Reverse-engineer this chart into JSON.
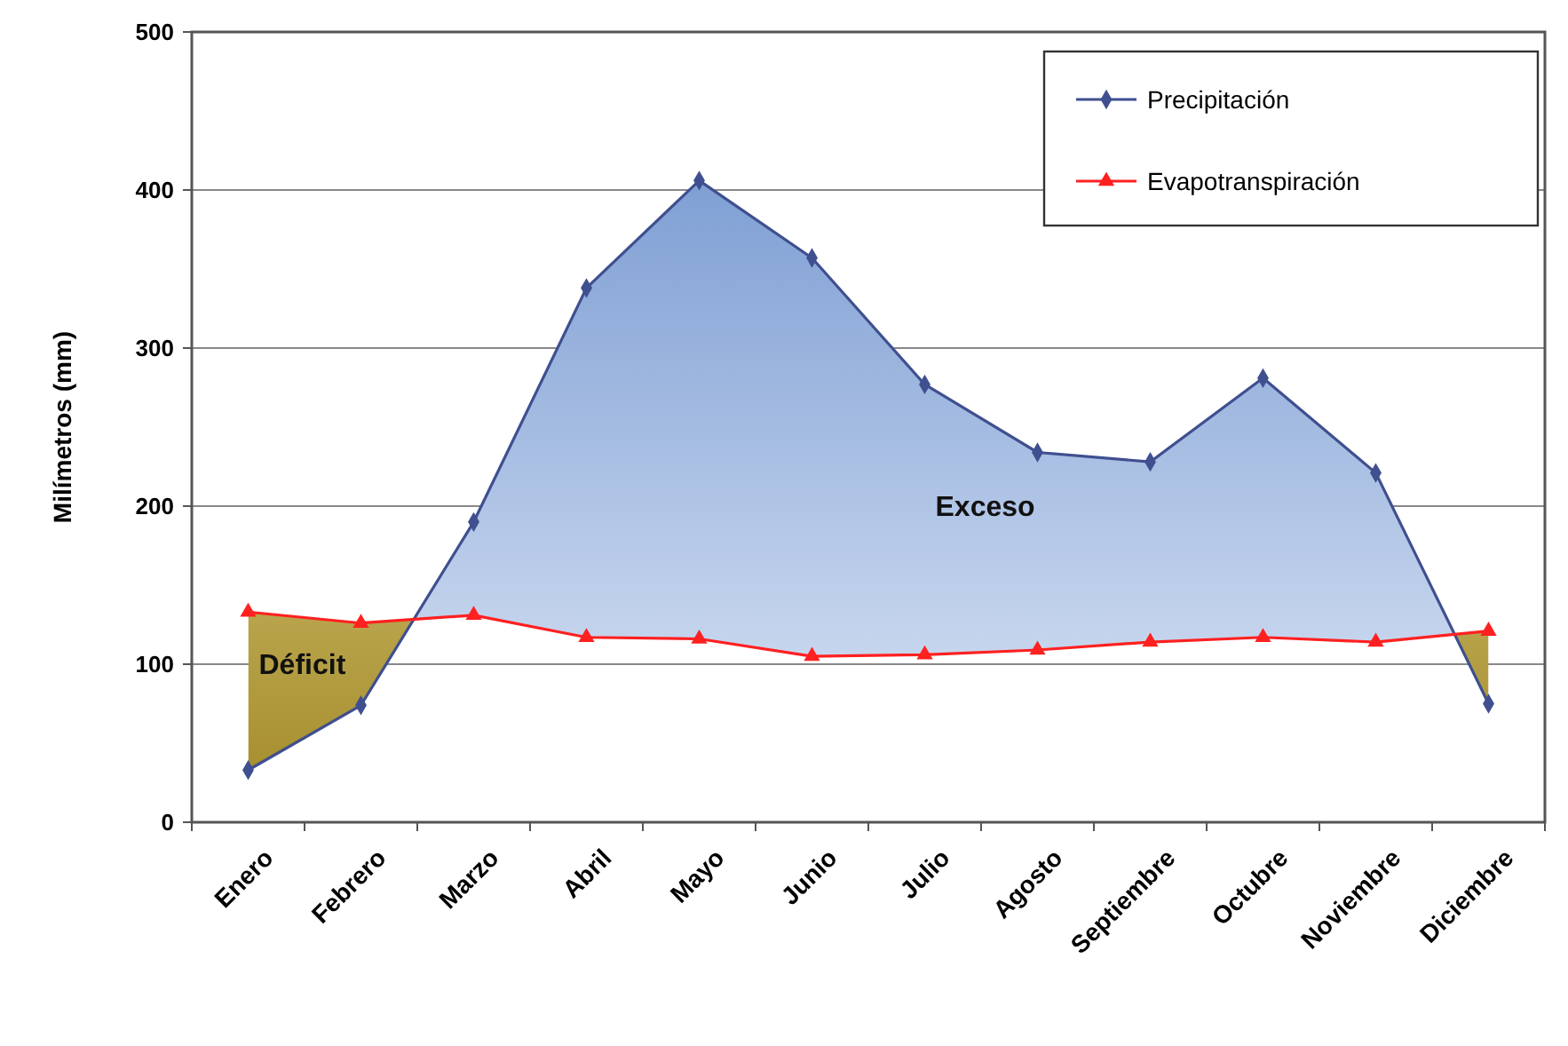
{
  "chart_data": {
    "type": "line",
    "ylabel": "Milímetros (mm)",
    "categories": [
      "Enero",
      "Febrero",
      "Marzo",
      "Abril",
      "Mayo",
      "Junio",
      "Julio",
      "Agosto",
      "Septiembre",
      "Octubre",
      "Noviembre",
      "Diciembre"
    ],
    "series": [
      {
        "name": "Precipitación",
        "color": "#3f4f8f",
        "marker": "diamond",
        "values": [
          33,
          74,
          190,
          338,
          406,
          357,
          277,
          234,
          228,
          281,
          221,
          75
        ],
        "lower": [
          133,
          126,
          131,
          117,
          116,
          105,
          106,
          109,
          114,
          117,
          114,
          121
        ],
        "upper": [
          33,
          74,
          190,
          338,
          406,
          357,
          277,
          234,
          228,
          281,
          221,
          75
        ]
      },
      {
        "name": "Evapotranspiración",
        "color": "#ff2020",
        "marker": "triangle",
        "values": [
          133,
          126,
          131,
          117,
          116,
          105,
          106,
          109,
          114,
          117,
          114,
          121
        ]
      }
    ],
    "ylim": [
      0,
      500
    ],
    "yticks": [
      0,
      100,
      200,
      300,
      400,
      500
    ],
    "grid": "y",
    "legend": "top right",
    "annotations": [
      "Exceso",
      "Déficit"
    ]
  }
}
